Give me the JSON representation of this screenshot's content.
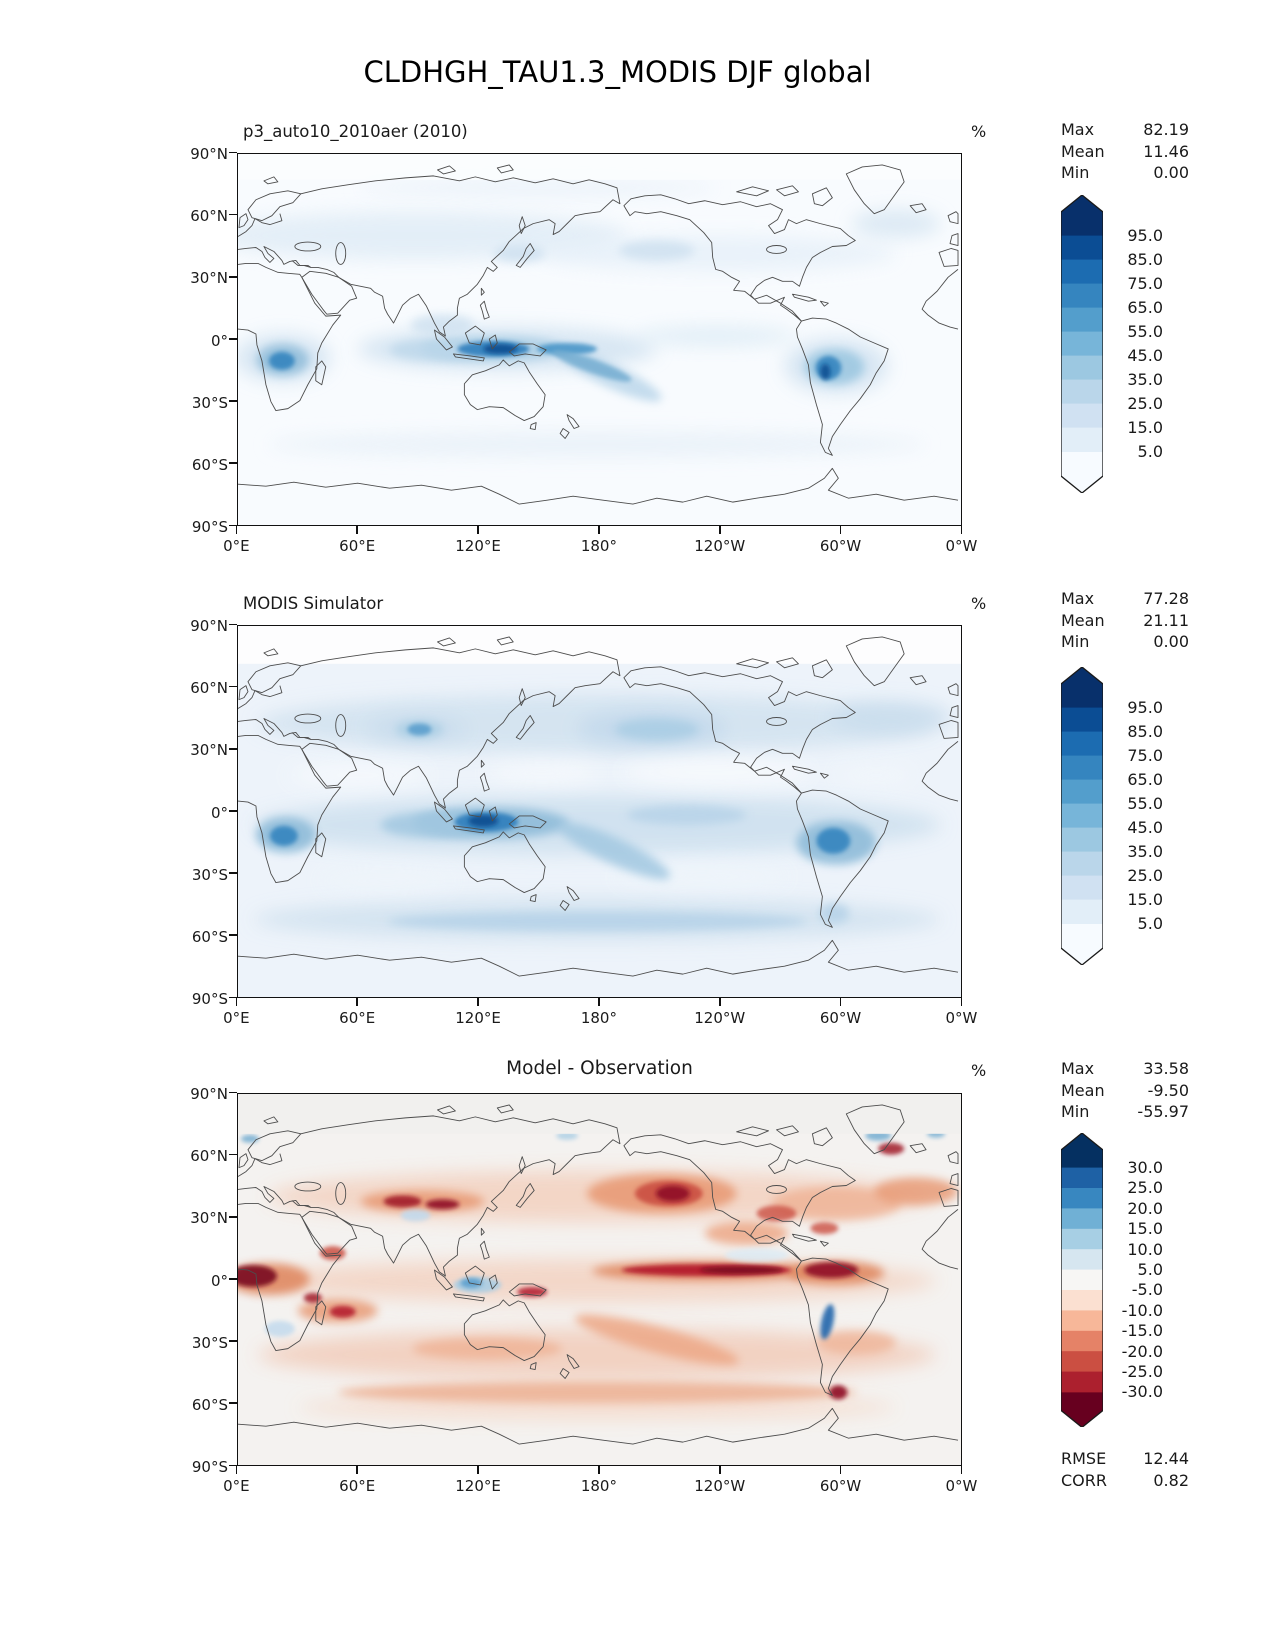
{
  "title": "CLDHGH_TAU1.3_MODIS DJF global",
  "axis": {
    "lat_ticks": [
      "90°N",
      "60°N",
      "30°N",
      "0°",
      "30°S",
      "60°S",
      "90°S"
    ],
    "lon_ticks": [
      "0°E",
      "60°E",
      "120°E",
      "180°",
      "120°W",
      "60°W",
      "0°W"
    ]
  },
  "panels": [
    {
      "title": "p3_auto10_2010aer (2010)",
      "unit": "%",
      "stats": [
        {
          "label": "Max",
          "value": "82.19"
        },
        {
          "label": "Mean",
          "value": "11.46"
        },
        {
          "label": "Min",
          "value": "0.00"
        }
      ],
      "colorbar": {
        "ticks": [
          "95.0",
          "85.0",
          "75.0",
          "65.0",
          "55.0",
          "45.0",
          "35.0",
          "25.0",
          "15.0",
          "5.0"
        ],
        "colors": [
          "#08306b",
          "#0b4d94",
          "#1c6cb1",
          "#3585bf",
          "#539ecc",
          "#77b5d9",
          "#9cc8e1",
          "#bad6ea",
          "#d0e1f2",
          "#e2eef8",
          "#f7fbff"
        ]
      }
    },
    {
      "title": "MODIS Simulator",
      "unit": "%",
      "stats": [
        {
          "label": "Max",
          "value": "77.28"
        },
        {
          "label": "Mean",
          "value": "21.11"
        },
        {
          "label": "Min",
          "value": "0.00"
        }
      ],
      "colorbar": {
        "ticks": [
          "95.0",
          "85.0",
          "75.0",
          "65.0",
          "55.0",
          "45.0",
          "35.0",
          "25.0",
          "15.0",
          "5.0"
        ],
        "colors": [
          "#08306b",
          "#0b4d94",
          "#1c6cb1",
          "#3585bf",
          "#539ecc",
          "#77b5d9",
          "#9cc8e1",
          "#bad6ea",
          "#d0e1f2",
          "#e2eef8",
          "#f7fbff"
        ]
      }
    },
    {
      "title": "Model - Observation",
      "unit": "%",
      "stats": [
        {
          "label": "Max",
          "value": "33.58"
        },
        {
          "label": "Mean",
          "value": "-9.50"
        },
        {
          "label": "Min",
          "value": "-55.97"
        }
      ],
      "extra": [
        {
          "label": "RMSE",
          "value": "12.44"
        },
        {
          "label": "CORR",
          "value": "0.82"
        }
      ],
      "colorbar": {
        "ticks": [
          "30.0",
          "25.0",
          "20.0",
          "15.0",
          "10.0",
          "5.0",
          "-5.0",
          "-10.0",
          "-15.0",
          "-20.0",
          "-25.0",
          "-30.0"
        ],
        "colors": [
          "#053061",
          "#1e61a5",
          "#3887c0",
          "#70b0d5",
          "#a7cfe4",
          "#d6e6f0",
          "#f7f6f4",
          "#fbe0d1",
          "#f7b799",
          "#e58267",
          "#cb4f42",
          "#ac202e",
          "#67001f"
        ]
      }
    }
  ],
  "chart_data": {
    "type": "map-contour",
    "figure_title": "CLDHGH_TAU1.3_MODIS DJF global",
    "variable": "CLDHGH_TAU1.3_MODIS (high-cloud fraction, tau > 1.3, MODIS)",
    "season": "DJF",
    "region": "global",
    "units": "%",
    "projection": "equirectangular, longitudes 0°E to 0°W (centered on 180°)",
    "lon_ticks_deg": [
      0,
      60,
      120,
      180,
      240,
      300,
      360
    ],
    "lat_ticks_deg": [
      90,
      60,
      30,
      0,
      -30,
      -60,
      -90
    ],
    "panels": [
      {
        "title": "p3_auto10_2010aer (2010)",
        "role": "model",
        "max": 82.19,
        "mean": 11.46,
        "min": 0.0,
        "colormap": "Blues",
        "extend": "both",
        "levels": [
          5,
          15,
          25,
          35,
          45,
          55,
          65,
          75,
          85,
          95
        ],
        "features": [
          "Strongest high-cloud maximum (~60-80%) over the Maritime Continent / west Pacific warm pool along the equator",
          "Secondary maxima over equatorial Africa (Congo basin) and the Amazon / Andes region of South America",
          "Band of moderate values along the South Pacific Convergence Zone",
          "Low values (<15%) over subtropical oceans, mid/high latitudes and polar caps"
        ]
      },
      {
        "title": "MODIS Simulator",
        "role": "observation",
        "max": 77.28,
        "mean": 21.11,
        "min": 0.0,
        "colormap": "Blues",
        "extend": "both",
        "levels": [
          5,
          15,
          25,
          35,
          45,
          55,
          65,
          75,
          85,
          95
        ],
        "features": [
          "Much broader and higher cloud amounts than the model: tropics, NH storm tracks, central Asia, North Pacific and Southern Ocean all 15-45%",
          "Maxima (~55-75%) over Indonesia, the Amazon basin and equatorial Africa",
          "No data / white poleward of about 75°N"
        ]
      },
      {
        "title": "Model - Observation",
        "role": "difference",
        "max": 33.58,
        "mean": -9.5,
        "min": -55.97,
        "rmse": 12.44,
        "corr": 0.82,
        "colormap": "RdBu",
        "extend": "both",
        "levels": [
          -30,
          -25,
          -20,
          -15,
          -10,
          -5,
          5,
          10,
          15,
          20,
          25,
          30
        ],
        "features": [
          "Widespread negative bias (model underestimates high cloud) of -5 to -25% over most oceans and tropics",
          "Strongest deficits (< -30%) over the Pacific ITCZ, North Pacific storm track, central Asia, equatorial Africa and northern South America",
          "Small positive differences (blue) along the Andes, Tibetan Plateau, parts of the Maritime Continent and scattered Arctic points"
        ]
      }
    ]
  }
}
